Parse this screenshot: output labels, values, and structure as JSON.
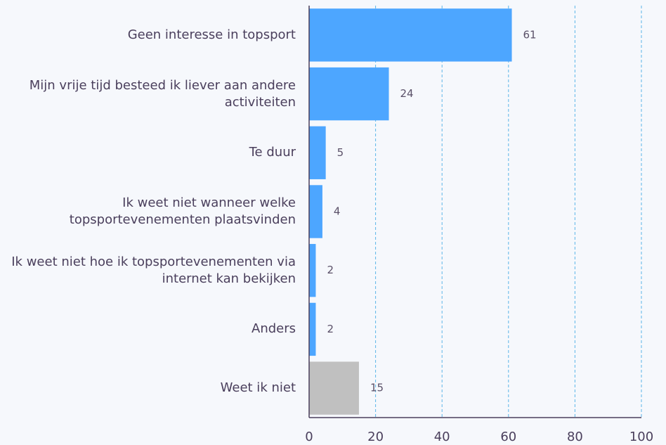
{
  "chart_data": {
    "type": "barh",
    "categories": [
      "Geen interesse in topsport",
      "Mijn vrije tijd besteed ik liever aan andere activiteiten",
      "Te duur",
      "Ik weet niet wanneer welke topsportevenementen plaatsvinden",
      "Ik weet niet hoe ik topsportevenementen via internet kan bekijken",
      "Anders",
      "Weet ik niet"
    ],
    "values": [
      61,
      24,
      5,
      4,
      2,
      2,
      15
    ],
    "colors": [
      "#4da6ff",
      "#4da6ff",
      "#4da6ff",
      "#4da6ff",
      "#4da6ff",
      "#4da6ff",
      "#c0c0c0"
    ],
    "xlim": [
      0,
      100
    ],
    "xticks": [
      0,
      20,
      40,
      60,
      80,
      100
    ],
    "grid": true
  }
}
